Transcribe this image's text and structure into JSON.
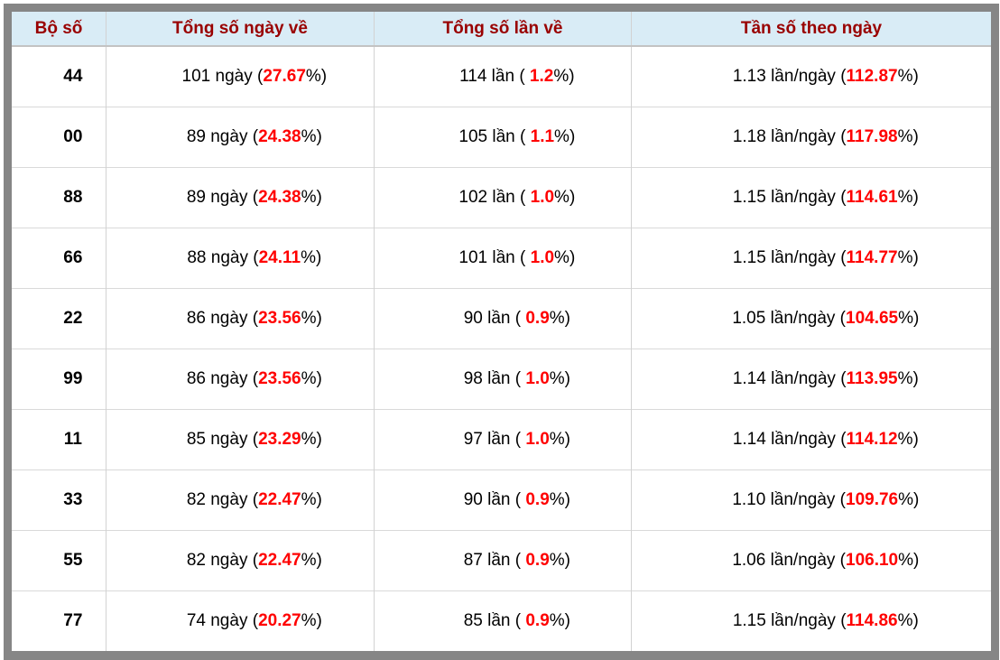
{
  "colors": {
    "frame_gray": "#868686",
    "header_background": "#d9ecf6",
    "header_text": "#990000",
    "body_text": "#000000",
    "highlight_red": "#ff0000",
    "grid_line": "#d9d9d9"
  },
  "table": {
    "headers": [
      "Bộ số",
      "Tổng số ngày về",
      "Tổng số lần về",
      "Tần số theo ngày"
    ],
    "rows": [
      {
        "pair": "44",
        "days": [
          "101 ngày (",
          "27.67",
          "%)"
        ],
        "times": [
          "114 lần ( ",
          "1.2",
          "%)"
        ],
        "freq": [
          "1.13 lần/ngày (",
          "112.87",
          "%)"
        ]
      },
      {
        "pair": "00",
        "days": [
          "89 ngày (",
          "24.38",
          "%)"
        ],
        "times": [
          "105 lần ( ",
          "1.1",
          "%)"
        ],
        "freq": [
          "1.18 lần/ngày (",
          "117.98",
          "%)"
        ]
      },
      {
        "pair": "88",
        "days": [
          "89 ngày (",
          "24.38",
          "%)"
        ],
        "times": [
          "102 lần ( ",
          "1.0",
          "%)"
        ],
        "freq": [
          "1.15 lần/ngày (",
          "114.61",
          "%)"
        ]
      },
      {
        "pair": "66",
        "days": [
          "88 ngày (",
          "24.11",
          "%)"
        ],
        "times": [
          "101 lần ( ",
          "1.0",
          "%)"
        ],
        "freq": [
          "1.15 lần/ngày (",
          "114.77",
          "%)"
        ]
      },
      {
        "pair": "22",
        "days": [
          "86 ngày (",
          "23.56",
          "%)"
        ],
        "times": [
          "90 lần ( ",
          "0.9",
          "%)"
        ],
        "freq": [
          "1.05 lần/ngày (",
          "104.65",
          "%)"
        ]
      },
      {
        "pair": "99",
        "days": [
          "86 ngày (",
          "23.56",
          "%)"
        ],
        "times": [
          "98 lần ( ",
          "1.0",
          "%)"
        ],
        "freq": [
          "1.14 lần/ngày (",
          "113.95",
          "%)"
        ]
      },
      {
        "pair": "11",
        "days": [
          "85 ngày (",
          "23.29",
          "%)"
        ],
        "times": [
          "97 lần ( ",
          "1.0",
          "%)"
        ],
        "freq": [
          "1.14 lần/ngày (",
          "114.12",
          "%)"
        ]
      },
      {
        "pair": "33",
        "days": [
          "82 ngày (",
          "22.47",
          "%)"
        ],
        "times": [
          "90 lần ( ",
          "0.9",
          "%)"
        ],
        "freq": [
          "1.10 lần/ngày (",
          "109.76",
          "%)"
        ]
      },
      {
        "pair": "55",
        "days": [
          "82 ngày (",
          "22.47",
          "%)"
        ],
        "times": [
          "87 lần ( ",
          "0.9",
          "%)"
        ],
        "freq": [
          "1.06 lần/ngày (",
          "106.10",
          "%)"
        ]
      },
      {
        "pair": "77",
        "days": [
          "74 ngày (",
          "20.27",
          "%)"
        ],
        "times": [
          "85 lần ( ",
          "0.9",
          "%)"
        ],
        "freq": [
          "1.15 lần/ngày (",
          "114.86",
          "%)"
        ]
      }
    ]
  },
  "chart_data": {
    "type": "table",
    "columns": [
      "Bộ số",
      "Tổng số ngày về",
      "Tổng số lần về",
      "Tần số theo ngày"
    ],
    "rows": [
      [
        "44",
        "101 ngày (27.67%)",
        "114 lần ( 1.2%)",
        "1.13 lần/ngày (112.87%)"
      ],
      [
        "00",
        "89 ngày (24.38%)",
        "105 lần ( 1.1%)",
        "1.18 lần/ngày (117.98%)"
      ],
      [
        "88",
        "89 ngày (24.38%)",
        "102 lần ( 1.0%)",
        "1.15 lần/ngày (114.61%)"
      ],
      [
        "66",
        "88 ngày (24.11%)",
        "101 lần ( 1.0%)",
        "1.15 lần/ngày (114.77%)"
      ],
      [
        "22",
        "86 ngày (23.56%)",
        "90 lần ( 0.9%)",
        "1.05 lần/ngày (104.65%)"
      ],
      [
        "99",
        "86 ngày (23.56%)",
        "98 lần ( 1.0%)",
        "1.14 lần/ngày (113.95%)"
      ],
      [
        "11",
        "85 ngày (23.29%)",
        "97 lần ( 1.0%)",
        "1.14 lần/ngày (114.12%)"
      ],
      [
        "33",
        "82 ngày (22.47%)",
        "90 lần ( 0.9%)",
        "1.10 lần/ngày (109.76%)"
      ],
      [
        "55",
        "82 ngày (22.47%)",
        "87 lần ( 0.9%)",
        "1.06 lần/ngày (106.10%)"
      ],
      [
        "77",
        "74 ngày (20.27%)",
        "85 lần ( 0.9%)",
        "1.15 lần/ngày (114.86%)"
      ]
    ],
    "numeric": {
      "pairs": [
        "44",
        "00",
        "88",
        "66",
        "22",
        "99",
        "11",
        "33",
        "55",
        "77"
      ],
      "total_days": [
        101,
        89,
        89,
        88,
        86,
        86,
        85,
        82,
        82,
        74
      ],
      "days_pct": [
        27.67,
        24.38,
        24.38,
        24.11,
        23.56,
        23.56,
        23.29,
        22.47,
        22.47,
        20.27
      ],
      "total_times": [
        114,
        105,
        102,
        101,
        90,
        98,
        97,
        90,
        87,
        85
      ],
      "times_pct": [
        1.2,
        1.1,
        1.0,
        1.0,
        0.9,
        1.0,
        1.0,
        0.9,
        0.9,
        0.9
      ],
      "freq_per_day": [
        1.13,
        1.18,
        1.15,
        1.15,
        1.05,
        1.14,
        1.14,
        1.1,
        1.06,
        1.15
      ],
      "freq_pct": [
        112.87,
        117.98,
        114.61,
        114.77,
        104.65,
        113.95,
        114.12,
        109.76,
        106.1,
        114.86
      ]
    }
  }
}
